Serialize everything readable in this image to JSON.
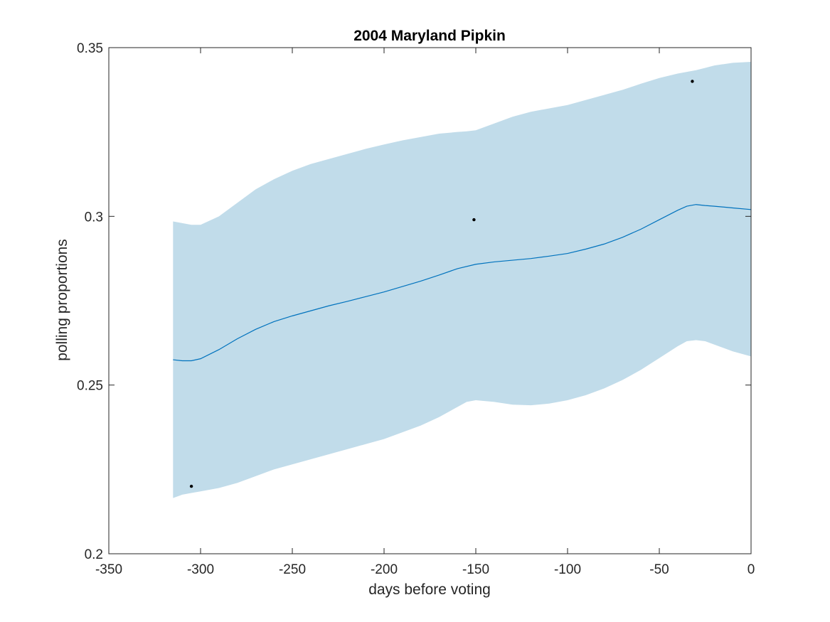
{
  "chart_data": {
    "type": "line",
    "title": "2004 Maryland Pipkin",
    "xlabel": "days before voting",
    "ylabel": "polling proportions",
    "xlim": [
      -350,
      0
    ],
    "ylim": [
      0.2,
      0.35
    ],
    "xticks": [
      -350,
      -300,
      -250,
      -200,
      -150,
      -100,
      -50,
      0
    ],
    "xtick_labels": [
      "-350",
      "-300",
      "-250",
      "-200",
      "-150",
      "-100",
      "-50",
      "0"
    ],
    "yticks": [
      0.2,
      0.25,
      0.3,
      0.35
    ],
    "ytick_labels": [
      "0.2",
      "0.25",
      "0.3",
      "0.35"
    ],
    "grid": false,
    "colors": {
      "band": "#c1dcea",
      "line": "#0072bd",
      "points": "#000000"
    },
    "band": {
      "x": [
        -315,
        -310,
        -305,
        -300,
        -290,
        -280,
        -270,
        -260,
        -250,
        -240,
        -230,
        -220,
        -210,
        -200,
        -190,
        -180,
        -170,
        -160,
        -155,
        -150,
        -140,
        -130,
        -120,
        -110,
        -100,
        -90,
        -80,
        -70,
        -60,
        -50,
        -40,
        -35,
        -30,
        -25,
        -20,
        -10,
        0
      ],
      "lower": [
        0.2165,
        0.2175,
        0.218,
        0.2185,
        0.2195,
        0.221,
        0.223,
        0.225,
        0.2265,
        0.228,
        0.2295,
        0.231,
        0.2325,
        0.234,
        0.236,
        0.238,
        0.2405,
        0.2435,
        0.245,
        0.2455,
        0.245,
        0.2442,
        0.244,
        0.2445,
        0.2455,
        0.247,
        0.249,
        0.2515,
        0.2545,
        0.258,
        0.2615,
        0.263,
        0.2633,
        0.263,
        0.262,
        0.26,
        0.2585
      ],
      "upper": [
        0.2985,
        0.298,
        0.2975,
        0.2975,
        0.3,
        0.304,
        0.308,
        0.311,
        0.3135,
        0.3155,
        0.317,
        0.3185,
        0.32,
        0.3213,
        0.3225,
        0.3235,
        0.3245,
        0.325,
        0.3252,
        0.3255,
        0.3275,
        0.3295,
        0.331,
        0.332,
        0.333,
        0.3345,
        0.336,
        0.3375,
        0.3393,
        0.341,
        0.3423,
        0.3428,
        0.3433,
        0.344,
        0.3447,
        0.3455,
        0.3458
      ]
    },
    "series": [
      {
        "x": [
          -315,
          -310,
          -305,
          -300,
          -290,
          -280,
          -270,
          -260,
          -250,
          -240,
          -230,
          -220,
          -210,
          -200,
          -190,
          -180,
          -170,
          -160,
          -150,
          -140,
          -130,
          -120,
          -110,
          -100,
          -90,
          -80,
          -70,
          -60,
          -50,
          -40,
          -35,
          -30,
          -25,
          -20,
          -10,
          0
        ],
        "y": [
          0.2575,
          0.2572,
          0.2572,
          0.2578,
          0.2605,
          0.2637,
          0.2665,
          0.2688,
          0.2705,
          0.272,
          0.2735,
          0.2748,
          0.2762,
          0.2776,
          0.2792,
          0.2808,
          0.2826,
          0.2845,
          0.2858,
          0.2865,
          0.287,
          0.2875,
          0.2882,
          0.289,
          0.2903,
          0.2918,
          0.2938,
          0.2962,
          0.299,
          0.3018,
          0.303,
          0.3035,
          0.3032,
          0.303,
          0.3025,
          0.302
        ]
      }
    ],
    "points": {
      "x": [
        -305,
        -151,
        -32
      ],
      "y": [
        0.22,
        0.299,
        0.34
      ]
    }
  }
}
